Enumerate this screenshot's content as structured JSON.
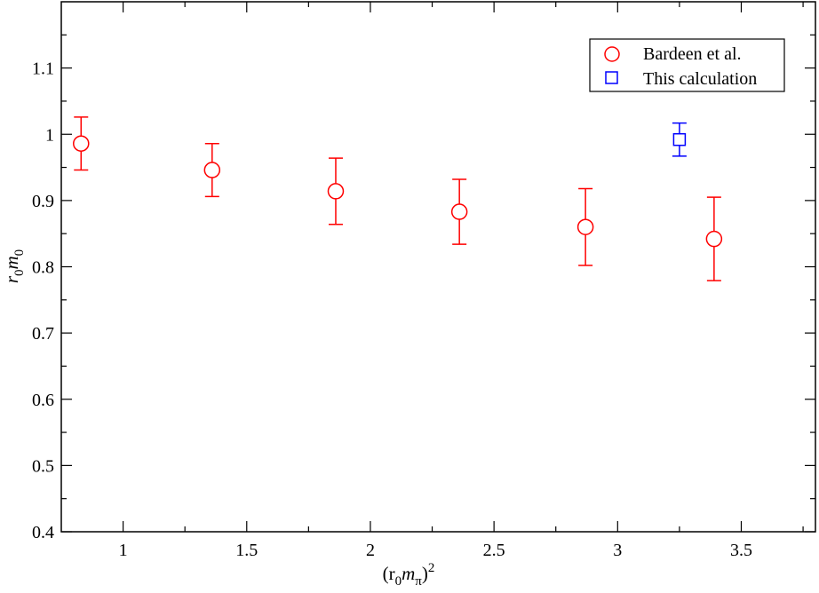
{
  "chart_data": {
    "type": "scatter",
    "xlabel": {
      "main": "(r",
      "sub1": "0",
      "mid": "m",
      "sub2": "π",
      "close": ")",
      "sup": "2"
    },
    "ylabel": {
      "r": "r",
      "sub1": "0",
      "m": "m",
      "sub2": "0"
    },
    "xlim": [
      0.75,
      3.8
    ],
    "ylim": [
      0.4,
      1.2
    ],
    "x_ticks": [
      {
        "value": 1,
        "label": "1"
      },
      {
        "value": 1.5,
        "label": "1.5"
      },
      {
        "value": 2,
        "label": "2"
      },
      {
        "value": 2.5,
        "label": "2.5"
      },
      {
        "value": 3,
        "label": "3"
      },
      {
        "value": 3.5,
        "label": "3.5"
      }
    ],
    "y_ticks": [
      {
        "value": 0.4,
        "label": "0.4"
      },
      {
        "value": 0.5,
        "label": "0.5"
      },
      {
        "value": 0.6,
        "label": "0.6"
      },
      {
        "value": 0.7,
        "label": "0.7"
      },
      {
        "value": 0.8,
        "label": "0.8"
      },
      {
        "value": 0.9,
        "label": "0.9"
      },
      {
        "value": 1.0,
        "label": "1"
      },
      {
        "value": 1.1,
        "label": "1.1"
      }
    ],
    "x_minor_step": 0.25,
    "y_minor_step": 0.05,
    "grid": false,
    "legend_position": "top-right",
    "series": [
      {
        "name": "Bardeen et al.",
        "marker": "circle",
        "color": "#ff0000",
        "points": [
          {
            "x": 0.83,
            "y": 0.986,
            "err": 0.04
          },
          {
            "x": 1.36,
            "y": 0.946,
            "err": 0.04
          },
          {
            "x": 1.86,
            "y": 0.914,
            "err": 0.05
          },
          {
            "x": 2.36,
            "y": 0.883,
            "err": 0.049
          },
          {
            "x": 2.87,
            "y": 0.86,
            "err": 0.058
          },
          {
            "x": 3.39,
            "y": 0.842,
            "err": 0.063
          }
        ]
      },
      {
        "name": "This calculation",
        "marker": "square",
        "color": "#0000ff",
        "points": [
          {
            "x": 3.25,
            "y": 0.992,
            "err": 0.025
          }
        ]
      }
    ]
  }
}
